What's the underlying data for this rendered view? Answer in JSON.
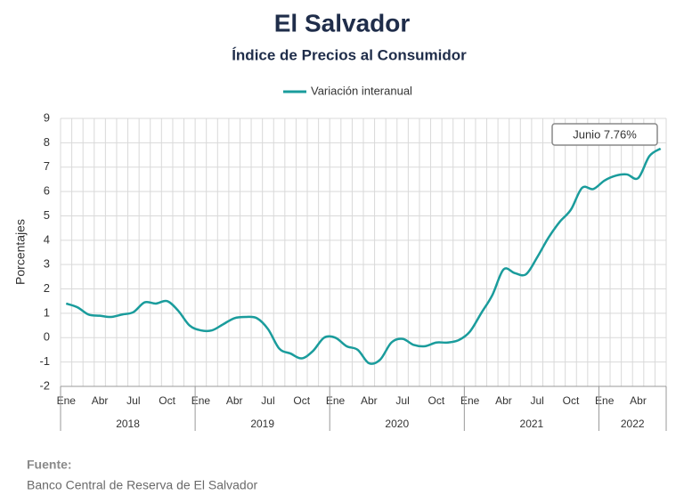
{
  "chart_data": {
    "type": "line",
    "title": "El Salvador",
    "subtitle": "Índice de Precios al Consumidor",
    "y_label": "Porcentajes",
    "categories": [
      "Ene",
      null,
      null,
      "Abr",
      null,
      null,
      "Jul",
      null,
      null,
      "Oct",
      null,
      null,
      "Ene",
      null,
      null,
      "Abr",
      null,
      null,
      "Jul",
      null,
      null,
      "Oct",
      null,
      null,
      "Ene",
      null,
      null,
      "Abr",
      null,
      null,
      "Jul",
      null,
      null,
      "Oct",
      null,
      null,
      "Ene",
      null,
      null,
      "Abr",
      null,
      null,
      "Jul",
      null,
      null,
      "Oct",
      null,
      null,
      "Ene",
      null,
      null,
      "Abr",
      null,
      null
    ],
    "years": [
      "2018",
      "2019",
      "2020",
      "2021",
      "2022"
    ],
    "series": [
      {
        "name": "Variación interanual",
        "color": "#1a9c9c",
        "values": [
          1.4,
          1.25,
          0.95,
          0.9,
          0.85,
          0.95,
          1.05,
          1.45,
          1.4,
          1.5,
          1.1,
          0.5,
          0.3,
          0.3,
          0.55,
          0.8,
          0.85,
          0.8,
          0.35,
          -0.45,
          -0.65,
          -0.85,
          -0.55,
          0.0,
          0.0,
          -0.35,
          -0.5,
          -1.05,
          -0.9,
          -0.2,
          -0.05,
          -0.3,
          -0.35,
          -0.2,
          -0.2,
          -0.1,
          0.25,
          1.0,
          1.75,
          2.8,
          2.65,
          2.6,
          3.3,
          4.1,
          4.75,
          5.25,
          6.15,
          6.1,
          6.45,
          6.65,
          6.7,
          6.55,
          7.45,
          7.76
        ]
      }
    ],
    "ylim": [
      -2,
      9
    ],
    "yticks": [
      -2,
      -1,
      0,
      1,
      2,
      3,
      4,
      5,
      6,
      7,
      8,
      9
    ],
    "grid": true,
    "legend": "top",
    "annotations": [
      {
        "text": "Junio 7.76%"
      }
    ],
    "source_label": "Fuente:",
    "source": "Banco Central de Reserva de El Salvador"
  }
}
